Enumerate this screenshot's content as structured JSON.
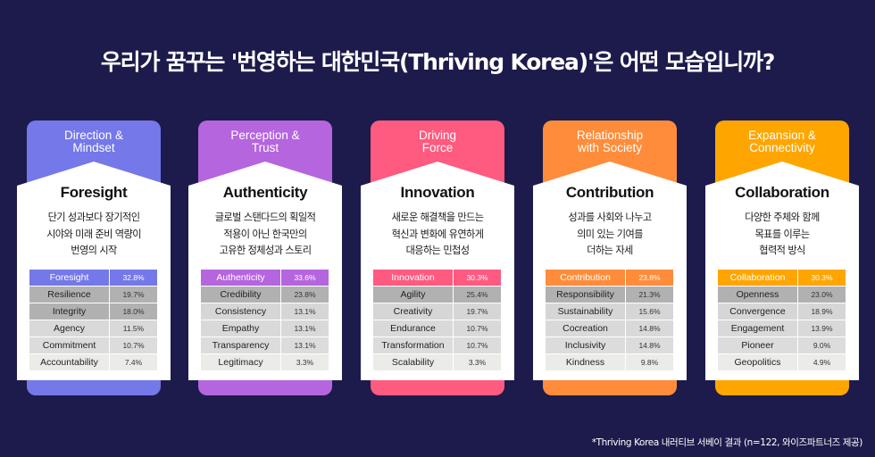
{
  "title": "우리가 꿈꾸는 '번영하는 대한민국(Thriving Korea)'은 어떤 모습입니까?",
  "cards": [
    {
      "color": "#7478e8",
      "category_lines": [
        "Direction &",
        "Mindset"
      ],
      "name": "Foresight",
      "desc_lines": [
        "단기 성과보다 장기적인",
        "시야와 미래 준비 역량이",
        "번영의 시작"
      ],
      "rows": [
        {
          "label": "Foresight",
          "value": "32.8%"
        },
        {
          "label": "Resilience",
          "value": "19.7%"
        },
        {
          "label": "Integrity",
          "value": "18.0%"
        },
        {
          "label": "Agency",
          "value": "11.5%"
        },
        {
          "label": "Commitment",
          "value": "10.7%"
        },
        {
          "label": "Accountability",
          "value": "7.4%"
        }
      ]
    },
    {
      "color": "#b565de",
      "category_lines": [
        "Perception &",
        "Trust"
      ],
      "name": "Authenticity",
      "desc_lines": [
        "글로벌 스탠다드의 획일적",
        "적용이 아닌 한국만의",
        "고유한 정체성과 스토리"
      ],
      "rows": [
        {
          "label": "Authenticity",
          "value": "33.6%"
        },
        {
          "label": "Credibility",
          "value": "23.8%"
        },
        {
          "label": "Consistency",
          "value": "13.1%"
        },
        {
          "label": "Empathy",
          "value": "13.1%"
        },
        {
          "label": "Transparency",
          "value": "13.1%"
        },
        {
          "label": "Legitimacy",
          "value": "3.3%"
        }
      ]
    },
    {
      "color": "#ff5a80",
      "category_lines": [
        "Driving",
        "Force"
      ],
      "name": "Innovation",
      "desc_lines": [
        "새로운 해결책을 만드는",
        "혁신과 변화에 유연하게",
        "대응하는 민첩성"
      ],
      "rows": [
        {
          "label": "Innovation",
          "value": "30.3%"
        },
        {
          "label": "Agility",
          "value": "25.4%"
        },
        {
          "label": "Creativity",
          "value": "19.7%"
        },
        {
          "label": "Endurance",
          "value": "10.7%"
        },
        {
          "label": "Transformation",
          "value": "10.7%"
        },
        {
          "label": "Scalability",
          "value": "3.3%"
        }
      ]
    },
    {
      "color": "#ff8c3a",
      "category_lines": [
        "Relationship",
        "with Society"
      ],
      "name": "Contribution",
      "desc_lines": [
        "성과를 사회와 나누고",
        "의미 있는 기여를",
        "더하는 자세"
      ],
      "rows": [
        {
          "label": "Contribution",
          "value": "23.8%"
        },
        {
          "label": "Responsibility",
          "value": "21.3%"
        },
        {
          "label": "Sustainability",
          "value": "15.6%"
        },
        {
          "label": "Cocreation",
          "value": "14.8%"
        },
        {
          "label": "Inclusivity",
          "value": "14.8%"
        },
        {
          "label": "Kindness",
          "value": "9.8%"
        }
      ]
    },
    {
      "color": "#ffa500",
      "category_lines": [
        "Expansion &",
        "Connectivity"
      ],
      "name": "Collaboration",
      "desc_lines": [
        "다양한 주체와 함께",
        "목표를 이루는",
        "협력적 방식"
      ],
      "rows": [
        {
          "label": "Collaboration",
          "value": "30.3%"
        },
        {
          "label": "Openness",
          "value": "23.0%"
        },
        {
          "label": "Convergence",
          "value": "18.9%"
        },
        {
          "label": "Engagement",
          "value": "13.9%"
        },
        {
          "label": "Pioneer",
          "value": "9.0%"
        },
        {
          "label": "Geopolitics",
          "value": "4.9%"
        }
      ]
    }
  ],
  "footnote": "*Thriving Korea 내러티브 서베이 결과 (n=122, 와이즈파트너즈 제공)"
}
